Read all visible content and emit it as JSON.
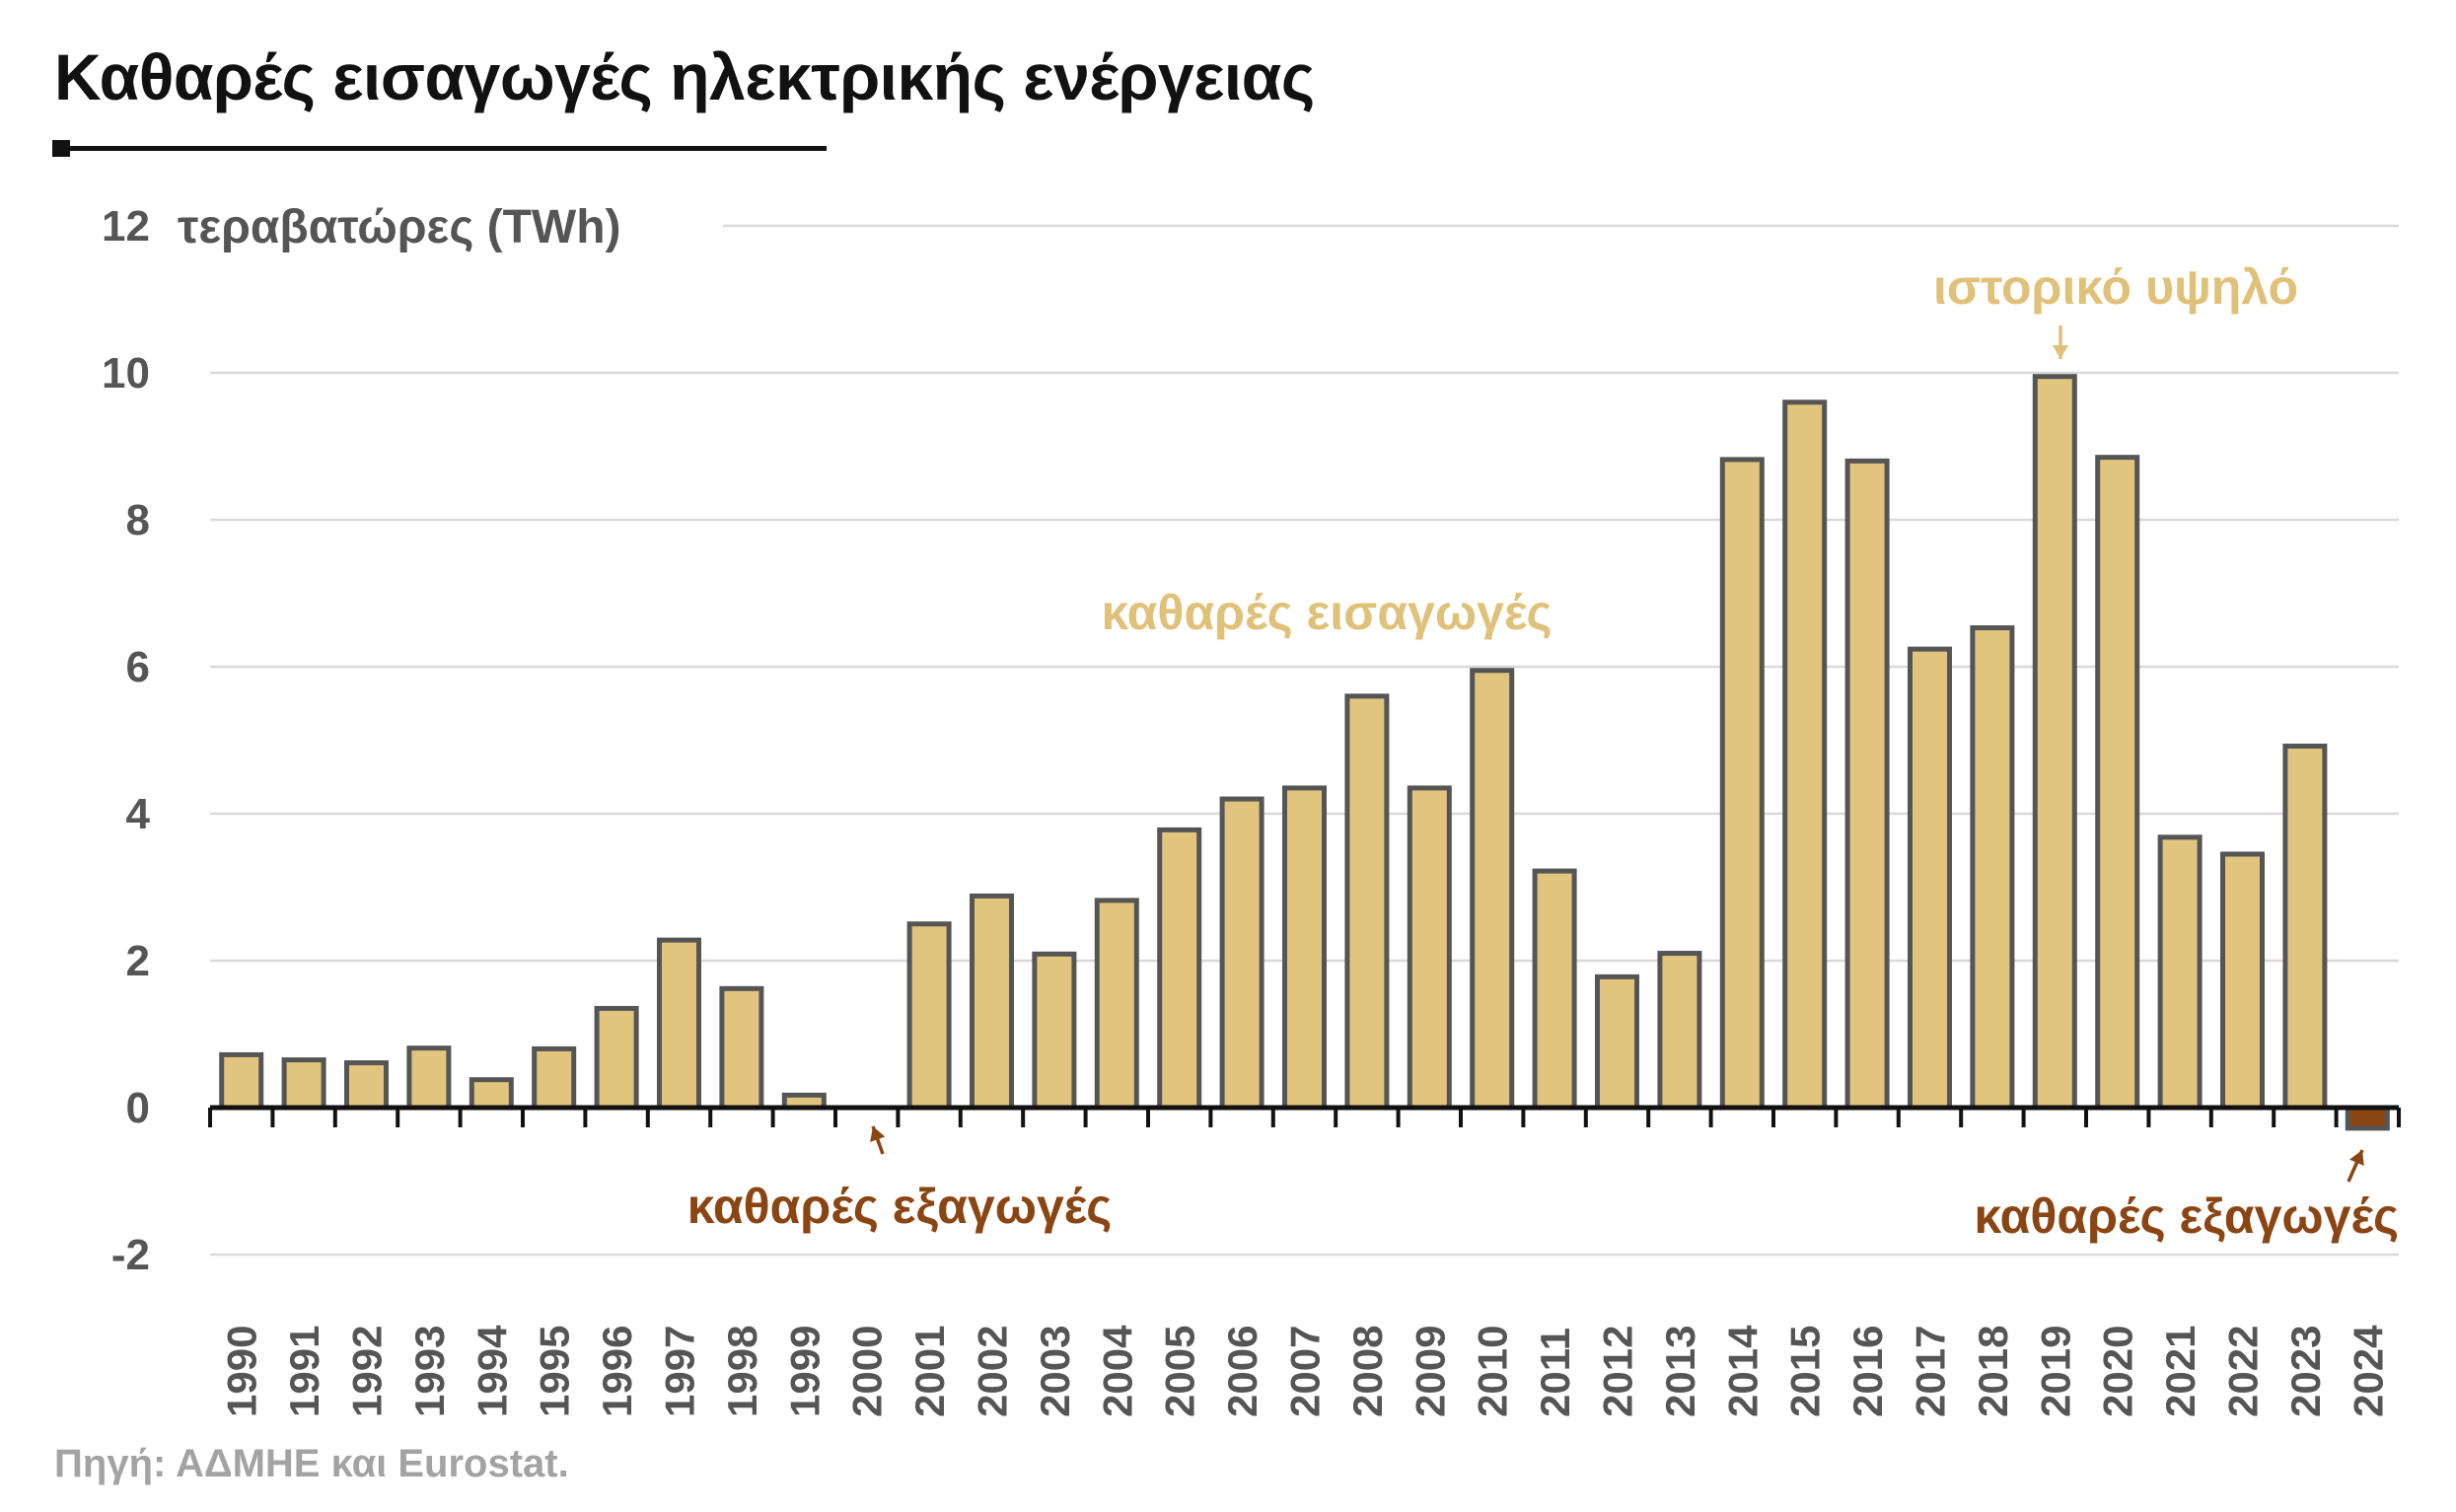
{
  "title": "Καθαρές εισαγωγές ηλεκτρικής ενέργειας",
  "source": "Πηγή: ΑΔΜΗΕ και Eurostat.",
  "colors": {
    "imports": "#e1c47e",
    "exports": "#8b4513",
    "outline": "#555555",
    "grid": "#d9d9d9",
    "axis": "#111111",
    "label_imports": "#dfc179",
    "label_exports": "#8b4513"
  },
  "chart_data": {
    "type": "bar",
    "ylabel": "τεραβατώρες (TWh)",
    "ylim": [
      -2,
      12
    ],
    "yticks": [
      -2,
      0,
      2,
      4,
      6,
      8,
      10,
      12
    ],
    "grid": true,
    "categories": [
      "1990",
      "1991",
      "1992",
      "1993",
      "1994",
      "1995",
      "1996",
      "1997",
      "1998",
      "1999",
      "2000",
      "2001",
      "2002",
      "2003",
      "2004",
      "2005",
      "2006",
      "2007",
      "2008",
      "2009",
      "2010",
      "2011",
      "2012",
      "2013",
      "2014",
      "2015",
      "2016",
      "2017",
      "2018",
      "2019",
      "2020",
      "2021",
      "2022",
      "2023",
      "2024"
    ],
    "values": [
      0.72,
      0.65,
      0.61,
      0.81,
      0.38,
      0.8,
      1.35,
      2.28,
      1.62,
      0.17,
      0.0,
      2.5,
      2.88,
      2.09,
      2.82,
      3.78,
      4.2,
      4.35,
      5.6,
      4.35,
      5.95,
      3.22,
      1.78,
      2.1,
      8.82,
      9.6,
      8.8,
      6.24,
      6.53,
      9.95,
      8.85,
      3.68,
      3.45,
      4.92,
      -0.28
    ],
    "annotations": [
      {
        "text": "ιστορικό υψηλό",
        "target": "2019",
        "kind": "imports"
      },
      {
        "text": "καθαρές εισαγωγές",
        "target": "2008",
        "kind": "imports"
      },
      {
        "text": "καθαρές εξαγωγές",
        "target": "2000",
        "kind": "exports"
      },
      {
        "text": "καθαρές εξαγωγές",
        "target": "2024",
        "kind": "exports"
      }
    ]
  }
}
